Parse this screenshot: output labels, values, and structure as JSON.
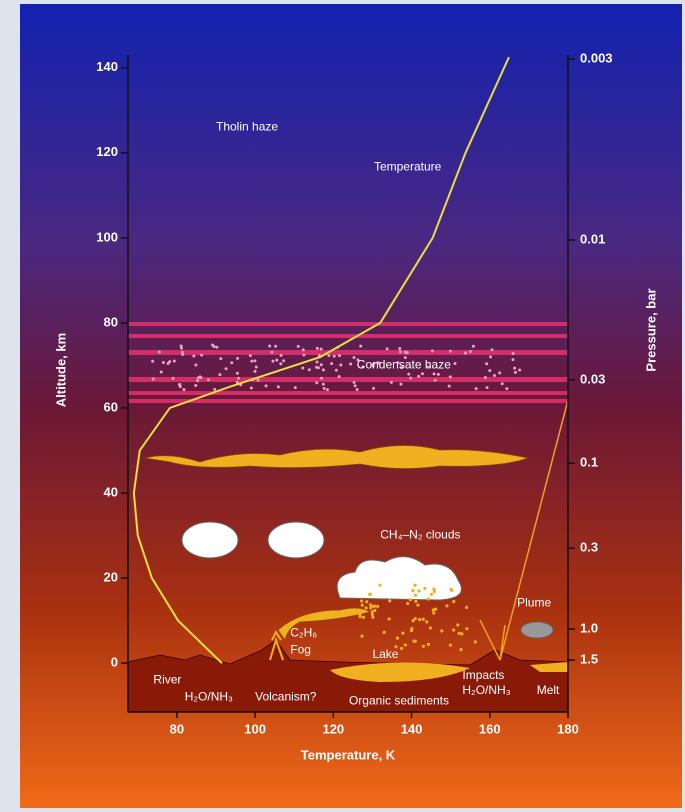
{
  "chart_data": {
    "type": "line",
    "x_label": "Temperature, K",
    "y_label": "Altitude, km",
    "xlim": [
      67.5,
      180
    ],
    "ylim": [
      -11.5,
      143
    ],
    "xticks": [
      80,
      100,
      120,
      140,
      160,
      180
    ],
    "yticks": [
      0,
      20,
      40,
      60,
      80,
      100,
      120,
      140
    ],
    "series": [
      {
        "name": "Temperature",
        "color": "#e8e040",
        "x": [
          164.9,
          153.8,
          145.4,
          132,
          116.7,
          93.6,
          78.2,
          70.5,
          69,
          70,
          73.6,
          80.3,
          91.5
        ],
        "values": [
          142.5,
          120,
          100,
          80,
          72,
          65,
          60,
          50,
          40,
          30,
          20,
          10,
          0
        ]
      }
    ],
    "pressure_axis": {
      "label": "Pressure, bar",
      "altitudes": [
        142,
        99.5,
        66.6,
        47,
        27,
        8,
        0.7
      ],
      "ticks": [
        0.003,
        0.01,
        0.03,
        0.1,
        0.3,
        {
          "value": 1,
          "label": "1.0"
        },
        1.5
      ]
    },
    "annotations": [
      {
        "text": "Tholin haze",
        "x": 90,
        "y": 126
      },
      {
        "text": "Condensate haze",
        "x": 126,
        "y": 70
      },
      {
        "text": "CH₄–N₂ clouds",
        "x": 132,
        "y": 30
      },
      {
        "text": "C₂H₆",
        "x": 109,
        "y": 7
      },
      {
        "text": "Fog",
        "x": 109,
        "y": 3
      },
      {
        "text": "Lake",
        "x": 130,
        "y": 2
      },
      {
        "text": "Plume",
        "x": 167,
        "y": 14
      },
      {
        "text": "River",
        "x": 74,
        "y": -4
      },
      {
        "text": "H₂O/NH₃",
        "x": 82,
        "y": -8
      },
      {
        "text": "Volcanism?",
        "x": 100,
        "y": -8
      },
      {
        "text": "Organic sediments",
        "x": 124,
        "y": -9
      },
      {
        "text": "Impacts",
        "x": 153,
        "y": -3
      },
      {
        "text": "H₂O/NH₃",
        "x": 153,
        "y": -6.5
      },
      {
        "text": "Melt",
        "x": 172,
        "y": -6.5
      }
    ]
  }
}
